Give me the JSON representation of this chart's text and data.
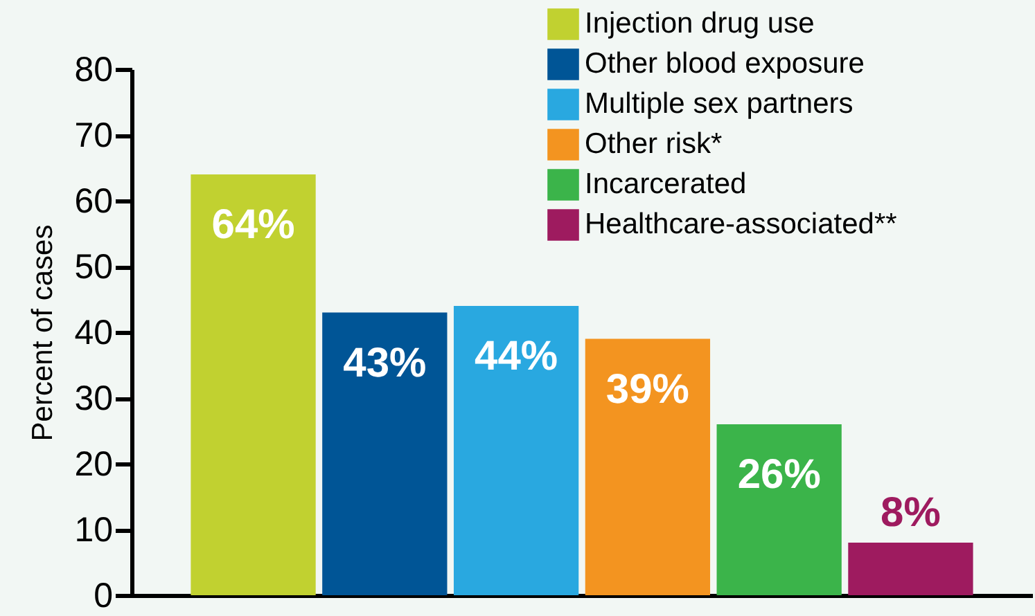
{
  "chart_data": {
    "type": "bar",
    "ylabel": "Percent of cases",
    "categories": [
      null,
      null,
      null,
      null,
      null,
      null
    ],
    "series": [
      {
        "name": "Injection drug use",
        "color": "#c1d130",
        "values": [
          64,
          null,
          null,
          null,
          null,
          null
        ],
        "value_labels": [
          "64%",
          null,
          null,
          null,
          null,
          null
        ]
      },
      {
        "name": "Other blood exposure",
        "color": "#005596",
        "values": [
          null,
          43,
          null,
          null,
          null,
          null
        ],
        "value_labels": [
          null,
          "43%",
          null,
          null,
          null,
          null
        ]
      },
      {
        "name": "Multiple sex partners",
        "color": "#29a8e0",
        "values": [
          null,
          null,
          44,
          null,
          null,
          null
        ],
        "value_labels": [
          null,
          null,
          "44%",
          null,
          null,
          null
        ]
      },
      {
        "name": "Other risk*",
        "color": "#f39420",
        "values": [
          null,
          null,
          null,
          39,
          null,
          null
        ],
        "value_labels": [
          null,
          null,
          null,
          "39%",
          null,
          null
        ]
      },
      {
        "name": "Incarcerated",
        "color": "#3bb44a",
        "values": [
          null,
          null,
          null,
          null,
          26,
          null
        ],
        "value_labels": [
          null,
          null,
          null,
          null,
          "26%",
          null
        ]
      },
      {
        "name": "Healthcare-associated**",
        "color": "#9e1b5f",
        "values": [
          null,
          null,
          null,
          null,
          null,
          8
        ],
        "value_labels": [
          null,
          null,
          null,
          null,
          null,
          "8%"
        ]
      }
    ],
    "ylim": [
      0,
      80
    ],
    "yticks": [
      0,
      10,
      20,
      30,
      40,
      50,
      60,
      70,
      80
    ],
    "grid": false,
    "legend": "top right"
  }
}
